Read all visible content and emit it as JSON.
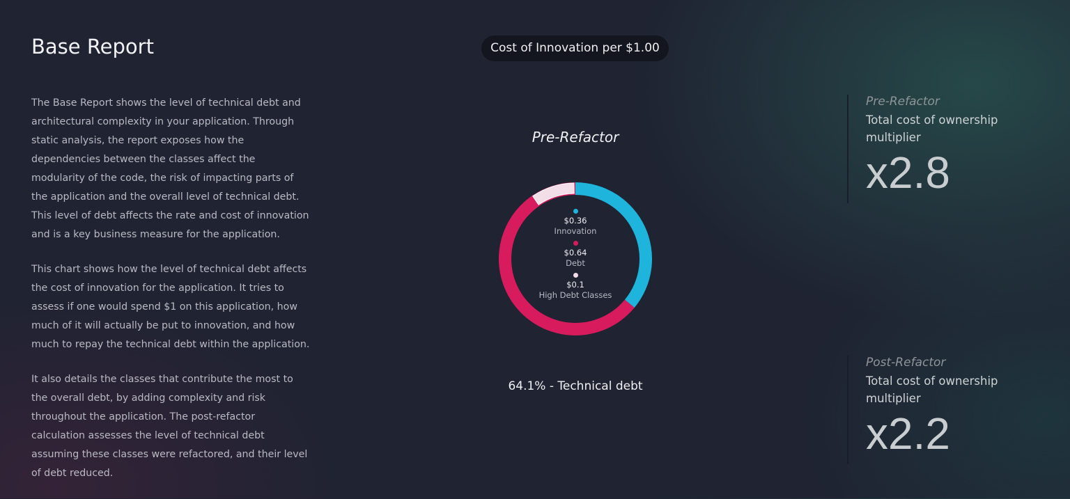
{
  "header": {
    "title": "Base Report",
    "pill": "Cost of Innovation per $1.00"
  },
  "description": [
    "The Base Report shows the level of technical debt and architectural complexity in your application. Through static analysis, the report exposes how the dependencies between the classes affect the modularity of the code, the risk of impacting parts of the application and the overall level of technical debt. This level of debt affects the rate and cost of innovation and is a key business measure for the application.",
    "This chart shows how the level of technical debt affects the cost of innovation for the application. It tries to assess if one would spend $1 on this application, how much of it will actually be put to innovation, and how much to repay the technical debt within the application.",
    "It also details the classes that contribute the most to the overall debt, by adding complexity and risk throughout the application. The post-refactor calculation assesses the level of technical debt assuming these classes were refactored, and their level of debt reduced."
  ],
  "chart": {
    "title": "Pre-Refactor",
    "summary": "64.1% - Technical debt",
    "segments": [
      {
        "label": "Innovation",
        "value_text": "$0.36",
        "value": 0.36,
        "color": "#1fb4dc"
      },
      {
        "label": "Debt",
        "value_text": "$0.64",
        "value": 0.64,
        "color": "#d81b5c"
      },
      {
        "label": "High Debt Classes",
        "value_text": "$0.1",
        "value": 0.1,
        "color": "#f3dde6"
      }
    ]
  },
  "stats": [
    {
      "heading": "Pre-Refactor",
      "label": "Total cost of ownership multiplier",
      "value": "x2.8"
    },
    {
      "heading": "Post-Refactor",
      "label": "Total cost of ownership multiplier",
      "value": "x2.2"
    }
  ]
}
